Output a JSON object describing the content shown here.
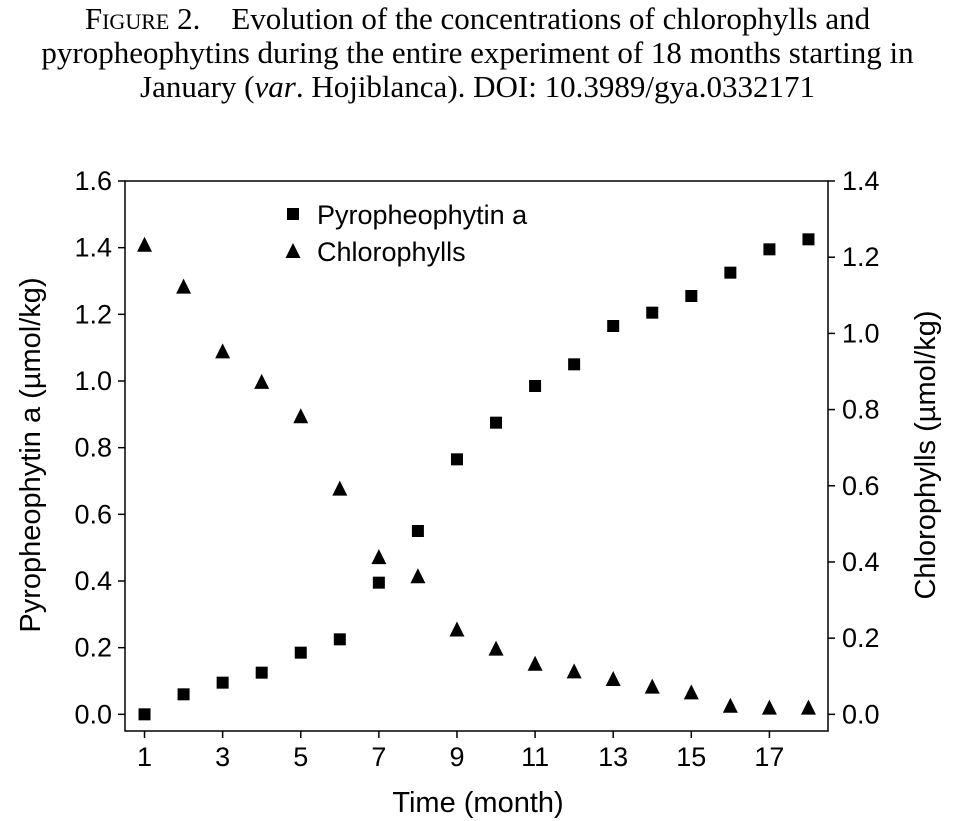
{
  "caption": {
    "label": "Figure 2.",
    "text_before_italic": "Evolution of the concentrations of chlorophylls and pyropheophytins during the entire experiment of 18 months starting in January (",
    "italic": "var",
    "text_after_italic": ". Hojiblanca). DOI: 10.3989/gya.0332171"
  },
  "chart_data": {
    "type": "scatter",
    "xlabel": "Time (month)",
    "ylabel_left": "Pyropheophytin a (µmol/kg)",
    "ylabel_right": "Chlorophylls (µmol/kg)",
    "x_ticks": [
      "1",
      "3",
      "5",
      "7",
      "9",
      "11",
      "13",
      "15",
      "17"
    ],
    "y_left_ticks": [
      "0.0",
      "0.2",
      "0.4",
      "0.6",
      "0.8",
      "1.0",
      "1.2",
      "1.4",
      "1.6"
    ],
    "y_right_ticks": [
      "0.0",
      "0.2",
      "0.4",
      "0.6",
      "0.8",
      "1.0",
      "1.2",
      "1.4"
    ],
    "xlim": [
      0.5,
      18.5
    ],
    "ylim_left": [
      -0.05,
      1.6
    ],
    "ylim_right": [
      -0.04375,
      1.4
    ],
    "legend_position": "top-center",
    "grid": false,
    "series": [
      {
        "name": "Pyropheophytin a",
        "marker": "square",
        "axis": "left",
        "x": [
          1,
          2,
          3,
          4,
          5,
          6,
          7,
          8,
          9,
          10,
          11,
          12,
          13,
          14,
          15,
          16,
          17,
          18
        ],
        "y": [
          0.0,
          0.06,
          0.095,
          0.125,
          0.185,
          0.225,
          0.395,
          0.55,
          0.765,
          0.875,
          0.985,
          1.05,
          1.165,
          1.205,
          1.255,
          1.325,
          1.395,
          1.425
        ]
      },
      {
        "name": "Chlorophylls",
        "marker": "triangle",
        "axis": "right",
        "x": [
          1,
          2,
          3,
          4,
          5,
          6,
          7,
          8,
          9,
          10,
          11,
          12,
          13,
          14,
          15,
          16,
          17,
          18
        ],
        "y": [
          1.23,
          1.12,
          0.95,
          0.87,
          0.78,
          0.59,
          0.41,
          0.36,
          0.22,
          0.17,
          0.13,
          0.11,
          0.09,
          0.07,
          0.055,
          0.02,
          0.015,
          0.015
        ]
      }
    ]
  }
}
